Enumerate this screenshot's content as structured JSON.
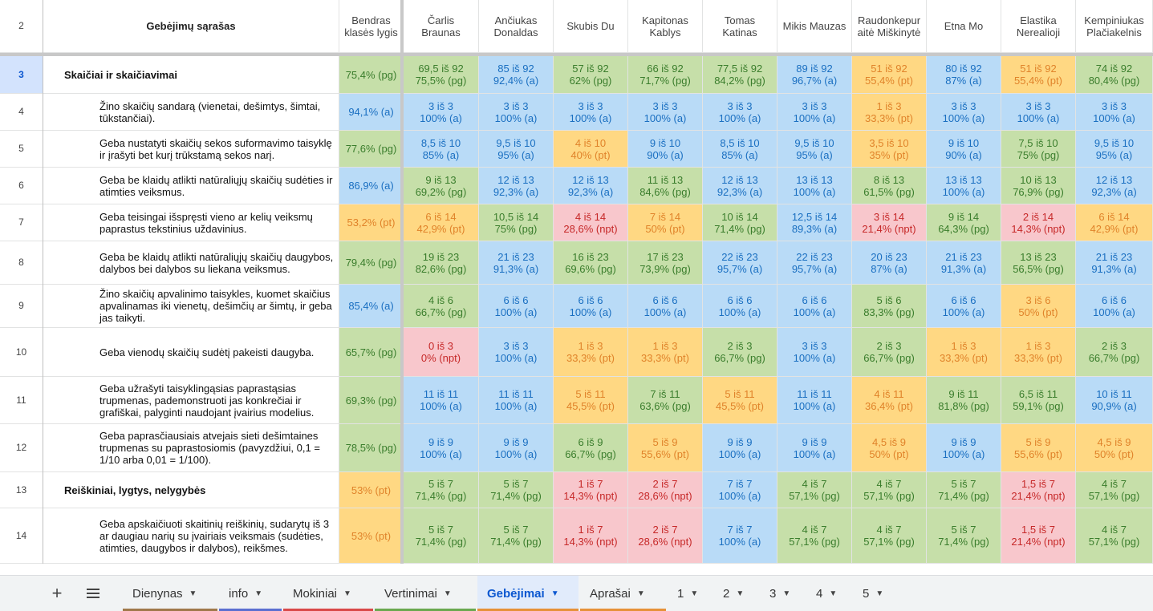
{
  "header": {
    "row_number": "2",
    "skills_title": "Gebėjimų sąrašas",
    "class_level": "Bendras\nklasės lygis",
    "students": [
      "Čarlis\nBraunas",
      "Ančiukas\nDonaldas",
      "Skubis Du",
      "Kapitonas\nKablys",
      "Tomas\nKatinas",
      "Mikis Mauzas",
      "Raudonkepur\naitė Miškinytė",
      "Etna Mo",
      "Elastika\nNerealioji",
      "Kempiniukas\nPlačiakelnis"
    ]
  },
  "rows": [
    {
      "num": "3",
      "type": "category",
      "text": "Skaičiai ir skaičiavimai",
      "class_level": {
        "v": "75,4% (pg)",
        "c": "g"
      },
      "cells": [
        [
          "69,5 iš 92\n75,5% (pg)",
          "g"
        ],
        [
          "85 iš 92\n92,4% (a)",
          "b"
        ],
        [
          "57 iš 92\n62% (pg)",
          "g"
        ],
        [
          "66 iš 92\n71,7% (pg)",
          "g"
        ],
        [
          "77,5 iš 92\n84,2% (pg)",
          "g"
        ],
        [
          "89 iš 92\n96,7% (a)",
          "b"
        ],
        [
          "51 iš 92\n55,4% (pt)",
          "y"
        ],
        [
          "80 iš 92\n87% (a)",
          "b"
        ],
        [
          "51 iš 92\n55,4% (pt)",
          "y"
        ],
        [
          "74 iš 92\n80,4% (pg)",
          "g"
        ]
      ]
    },
    {
      "num": "4",
      "type": "skill",
      "text": "Žino skaičių sandarą (vienetai, dešimtys, šimtai, tūkstančiai).",
      "class_level": {
        "v": "94,1% (a)",
        "c": "b"
      },
      "cells": [
        [
          "3 iš 3\n100% (a)",
          "b"
        ],
        [
          "3 iš 3\n100% (a)",
          "b"
        ],
        [
          "3 iš 3\n100% (a)",
          "b"
        ],
        [
          "3 iš 3\n100% (a)",
          "b"
        ],
        [
          "3 iš 3\n100% (a)",
          "b"
        ],
        [
          "3 iš 3\n100% (a)",
          "b"
        ],
        [
          "1 iš 3\n33,3% (pt)",
          "y"
        ],
        [
          "3 iš 3\n100% (a)",
          "b"
        ],
        [
          "3 iš 3\n100% (a)",
          "b"
        ],
        [
          "3 iš 3\n100% (a)",
          "b"
        ]
      ]
    },
    {
      "num": "5",
      "type": "skill",
      "text": "Geba nustatyti skaičių sekos suformavimo taisyklę ir įrašyti bet kurį trūkstamą sekos narį.",
      "class_level": {
        "v": "77,6% (pg)",
        "c": "g"
      },
      "cells": [
        [
          "8,5 iš 10\n85% (a)",
          "b"
        ],
        [
          "9,5 iš 10\n95% (a)",
          "b"
        ],
        [
          "4 iš 10\n40% (pt)",
          "y"
        ],
        [
          "9 iš 10\n90% (a)",
          "b"
        ],
        [
          "8,5 iš 10\n85% (a)",
          "b"
        ],
        [
          "9,5 iš 10\n95% (a)",
          "b"
        ],
        [
          "3,5 iš 10\n35% (pt)",
          "y"
        ],
        [
          "9 iš 10\n90% (a)",
          "b"
        ],
        [
          "7,5 iš 10\n75% (pg)",
          "g"
        ],
        [
          "9,5 iš 10\n95% (a)",
          "b"
        ]
      ]
    },
    {
      "num": "6",
      "type": "skill",
      "text": "Geba be klaidų atlikti natūraliųjų skaičių sudėties ir atimties veiksmus.",
      "class_level": {
        "v": "86,9% (a)",
        "c": "b"
      },
      "cells": [
        [
          "9 iš 13\n69,2% (pg)",
          "g"
        ],
        [
          "12 iš 13\n92,3% (a)",
          "b"
        ],
        [
          "12 iš 13\n92,3% (a)",
          "b"
        ],
        [
          "11 iš 13\n84,6% (pg)",
          "g"
        ],
        [
          "12 iš 13\n92,3% (a)",
          "b"
        ],
        [
          "13 iš 13\n100% (a)",
          "b"
        ],
        [
          "8 iš 13\n61,5% (pg)",
          "g"
        ],
        [
          "13 iš 13\n100% (a)",
          "b"
        ],
        [
          "10 iš 13\n76,9% (pg)",
          "g"
        ],
        [
          "12 iš 13\n92,3% (a)",
          "b"
        ]
      ]
    },
    {
      "num": "7",
      "type": "skill",
      "text": "Geba teisingai išspręsti vieno ar kelių veiksmų paprastus tekstinius uždavinius.",
      "class_level": {
        "v": "53,2% (pt)",
        "c": "y"
      },
      "cells": [
        [
          "6 iš 14\n42,9% (pt)",
          "y"
        ],
        [
          "10,5 iš 14\n75% (pg)",
          "g"
        ],
        [
          "4 iš 14\n28,6% (npt)",
          "r"
        ],
        [
          "7 iš 14\n50% (pt)",
          "y"
        ],
        [
          "10 iš 14\n71,4% (pg)",
          "g"
        ],
        [
          "12,5 iš 14\n89,3% (a)",
          "b"
        ],
        [
          "3 iš 14\n21,4% (npt)",
          "r"
        ],
        [
          "9 iš 14\n64,3% (pg)",
          "g"
        ],
        [
          "2 iš 14\n14,3% (npt)",
          "r"
        ],
        [
          "6 iš 14\n42,9% (pt)",
          "y"
        ]
      ]
    },
    {
      "num": "8",
      "type": "skill",
      "text": "Geba be klaidų atlikti natūraliųjų skaičių daugybos, dalybos bei dalybos su liekana veiksmus.",
      "class_level": {
        "v": "79,4% (pg)",
        "c": "g"
      },
      "cells": [
        [
          "19 iš 23\n82,6% (pg)",
          "g"
        ],
        [
          "21 iš 23\n91,3% (a)",
          "b"
        ],
        [
          "16 iš 23\n69,6% (pg)",
          "g"
        ],
        [
          "17 iš 23\n73,9% (pg)",
          "g"
        ],
        [
          "22 iš 23\n95,7% (a)",
          "b"
        ],
        [
          "22 iš 23\n95,7% (a)",
          "b"
        ],
        [
          "20 iš 23\n87% (a)",
          "b"
        ],
        [
          "21 iš 23\n91,3% (a)",
          "b"
        ],
        [
          "13 iš 23\n56,5% (pg)",
          "g"
        ],
        [
          "21 iš 23\n91,3% (a)",
          "b"
        ]
      ]
    },
    {
      "num": "9",
      "type": "skill",
      "text": "Žino skaičių apvalinimo taisykles, kuomet skaičius apvalinamas iki vienetų, dešimčių ar šimtų, ir geba jas taikyti.",
      "class_level": {
        "v": "85,4% (a)",
        "c": "b"
      },
      "cells": [
        [
          "4 iš 6\n66,7% (pg)",
          "g"
        ],
        [
          "6 iš 6\n100% (a)",
          "b"
        ],
        [
          "6 iš 6\n100% (a)",
          "b"
        ],
        [
          "6 iš 6\n100% (a)",
          "b"
        ],
        [
          "6 iš 6\n100% (a)",
          "b"
        ],
        [
          "6 iš 6\n100% (a)",
          "b"
        ],
        [
          "5 iš 6\n83,3% (pg)",
          "g"
        ],
        [
          "6 iš 6\n100% (a)",
          "b"
        ],
        [
          "3 iš 6\n50% (pt)",
          "y"
        ],
        [
          "6 iš 6\n100% (a)",
          "b"
        ]
      ]
    },
    {
      "num": "10",
      "type": "skill",
      "text": "Geba vienodų skaičių sudėtį pakeisti daugyba.",
      "class_level": {
        "v": "65,7% (pg)",
        "c": "g"
      },
      "cells": [
        [
          "0 iš 3\n0% (npt)",
          "r"
        ],
        [
          "3 iš 3\n100% (a)",
          "b"
        ],
        [
          "1 iš 3\n33,3% (pt)",
          "y"
        ],
        [
          "1 iš 3\n33,3% (pt)",
          "y"
        ],
        [
          "2 iš 3\n66,7% (pg)",
          "g"
        ],
        [
          "3 iš 3\n100% (a)",
          "b"
        ],
        [
          "2 iš 3\n66,7% (pg)",
          "g"
        ],
        [
          "1 iš 3\n33,3% (pt)",
          "y"
        ],
        [
          "1 iš 3\n33,3% (pt)",
          "y"
        ],
        [
          "2 iš 3\n66,7% (pg)",
          "g"
        ]
      ]
    },
    {
      "num": "11",
      "type": "skill",
      "text": "Geba užrašyti taisyklingąsias paprastąsias trupmenas, pademonstruoti jas konkrečiai ir grafiškai, palyginti naudojant įvairius modelius.",
      "class_level": {
        "v": "69,3% (pg)",
        "c": "g"
      },
      "cells": [
        [
          "11 iš 11\n100% (a)",
          "b"
        ],
        [
          "11 iš 11\n100% (a)",
          "b"
        ],
        [
          "5 iš 11\n45,5% (pt)",
          "y"
        ],
        [
          "7 iš 11\n63,6% (pg)",
          "g"
        ],
        [
          "5 iš 11\n45,5% (pt)",
          "y"
        ],
        [
          "11 iš 11\n100% (a)",
          "b"
        ],
        [
          "4 iš 11\n36,4% (pt)",
          "y"
        ],
        [
          "9 iš 11\n81,8% (pg)",
          "g"
        ],
        [
          "6,5 iš 11\n59,1% (pg)",
          "g"
        ],
        [
          "10 iš 11\n90,9% (a)",
          "b"
        ]
      ]
    },
    {
      "num": "12",
      "type": "skill",
      "text": "Geba paprasčiausiais atvejais sieti dešimtaines trupmenas su paprastosiomis (pavyzdžiui, 0,1 = 1/10 arba 0,01 = 1/100).",
      "class_level": {
        "v": "78,5% (pg)",
        "c": "g"
      },
      "cells": [
        [
          "9 iš 9\n100% (a)",
          "b"
        ],
        [
          "9 iš 9\n100% (a)",
          "b"
        ],
        [
          "6 iš 9\n66,7% (pg)",
          "g"
        ],
        [
          "5 iš 9\n55,6% (pt)",
          "y"
        ],
        [
          "9 iš 9\n100% (a)",
          "b"
        ],
        [
          "9 iš 9\n100% (a)",
          "b"
        ],
        [
          "4,5 iš 9\n50% (pt)",
          "y"
        ],
        [
          "9 iš 9\n100% (a)",
          "b"
        ],
        [
          "5 iš 9\n55,6% (pt)",
          "y"
        ],
        [
          "4,5 iš 9\n50% (pt)",
          "y"
        ]
      ]
    },
    {
      "num": "13",
      "type": "category",
      "text": "Reiškiniai, lygtys, nelygybės",
      "class_level": {
        "v": "53% (pt)",
        "c": "y"
      },
      "cells": [
        [
          "5 iš 7\n71,4% (pg)",
          "g"
        ],
        [
          "5 iš 7\n71,4% (pg)",
          "g"
        ],
        [
          "1 iš 7\n14,3% (npt)",
          "r"
        ],
        [
          "2 iš 7\n28,6% (npt)",
          "r"
        ],
        [
          "7 iš 7\n100% (a)",
          "b"
        ],
        [
          "4 iš 7\n57,1% (pg)",
          "g"
        ],
        [
          "4 iš 7\n57,1% (pg)",
          "g"
        ],
        [
          "5 iš 7\n71,4% (pg)",
          "g"
        ],
        [
          "1,5 iš 7\n21,4% (npt)",
          "r"
        ],
        [
          "4 iš 7\n57,1% (pg)",
          "g"
        ]
      ]
    },
    {
      "num": "14",
      "type": "skill",
      "text": "Geba apskaičiuoti skaitinių reiškinių, sudarytų iš 3 ar daugiau narių su įvairiais veiksmais (sudėties, atimties, daugybos ir dalybos), reikšmes.",
      "class_level": {
        "v": "53% (pt)",
        "c": "y"
      },
      "cells": [
        [
          "5 iš 7\n71,4% (pg)",
          "g"
        ],
        [
          "5 iš 7\n71,4% (pg)",
          "g"
        ],
        [
          "1 iš 7\n14,3% (npt)",
          "r"
        ],
        [
          "2 iš 7\n28,6% (npt)",
          "r"
        ],
        [
          "7 iš 7\n100% (a)",
          "b"
        ],
        [
          "4 iš 7\n57,1% (pg)",
          "g"
        ],
        [
          "4 iš 7\n57,1% (pg)",
          "g"
        ],
        [
          "5 iš 7\n71,4% (pg)",
          "g"
        ],
        [
          "1,5 iš 7\n21,4% (npt)",
          "r"
        ],
        [
          "4 iš 7\n57,1% (pg)",
          "g"
        ]
      ]
    }
  ],
  "selected_row": "3",
  "colors": {
    "green": "#c6dfa9",
    "blue": "#b9dbf7",
    "yellow": "#ffd883",
    "red": "#f8c7cc"
  },
  "tabbar": {
    "add_icon": "plus-icon",
    "menu_icon": "hamburger-menu-icon",
    "tabs": [
      {
        "label": "Dienynas",
        "color": "#a0784a"
      },
      {
        "label": "info",
        "color": "#5b6fd1"
      },
      {
        "label": "Mokiniai",
        "color": "#d94848"
      },
      {
        "label": "Vertinimai",
        "color": "#6aa84f"
      },
      {
        "label": "Gebėjimai",
        "color": "#e69138",
        "active": true
      },
      {
        "label": "Aprašai",
        "color": "#e69138"
      },
      {
        "label": "1",
        "color": ""
      },
      {
        "label": "2",
        "color": ""
      },
      {
        "label": "3",
        "color": ""
      },
      {
        "label": "4",
        "color": ""
      },
      {
        "label": "5",
        "color": ""
      }
    ]
  }
}
